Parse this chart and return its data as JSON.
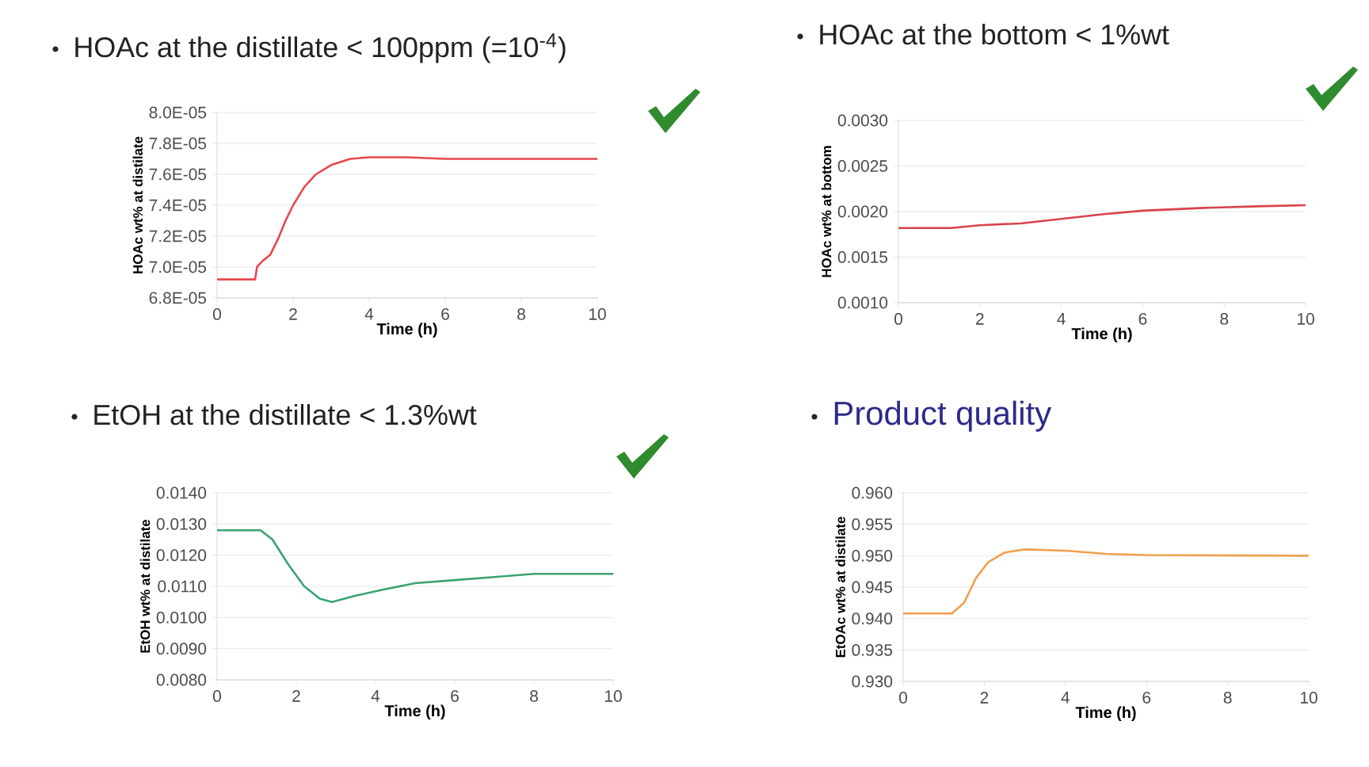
{
  "chart_data": [
    {
      "type": "line",
      "title": "HOAc at the distillate < 100ppm (=10$^{-4}$)",
      "xlabel": "Time (h)",
      "ylabel": "HOAc wt% at distilate",
      "color": "#e8474f",
      "grid": "y",
      "x": [
        0,
        1.0,
        1.05,
        1.2,
        1.4,
        1.6,
        1.8,
        2.0,
        2.3,
        2.6,
        3.0,
        3.5,
        4.0,
        5,
        6,
        8,
        10
      ],
      "values": [
        6.92e-05,
        6.92e-05,
        7e-05,
        7.04e-05,
        7.08e-05,
        7.18e-05,
        7.3e-05,
        7.4e-05,
        7.52e-05,
        7.6e-05,
        7.66e-05,
        7.7e-05,
        7.71e-05,
        7.71e-05,
        7.7e-05,
        7.7e-05,
        7.7e-05
      ],
      "xlim": [
        0,
        10
      ],
      "xticks": [
        0,
        2,
        4,
        6,
        8,
        10
      ],
      "ylim": [
        6.8e-05,
        8e-05
      ],
      "yticks": [
        {
          "value": 6.8e-05,
          "label": "6.8E-05"
        },
        {
          "value": 7e-05,
          "label": "7.0E-05"
        },
        {
          "value": 7.2e-05,
          "label": "7.2E-05"
        },
        {
          "value": 7.4e-05,
          "label": "7.4E-05"
        },
        {
          "value": 7.6e-05,
          "label": "7.6E-05"
        },
        {
          "value": 7.8e-05,
          "label": "7.8E-05"
        },
        {
          "value": 8e-05,
          "label": "8.0E-05"
        }
      ]
    },
    {
      "type": "line",
      "title": "HOAc at the bottom < 1%wt",
      "xlabel": "Time (h)",
      "ylabel": "HOAc wt% at bottom",
      "color": "#d9434a",
      "grid": "y",
      "x": [
        0,
        1.3,
        2,
        3,
        4,
        5,
        6,
        7.5,
        9,
        10
      ],
      "values": [
        0.00182,
        0.00182,
        0.00185,
        0.00187,
        0.00192,
        0.00197,
        0.00201,
        0.00204,
        0.00206,
        0.00207
      ],
      "xlim": [
        0,
        10
      ],
      "xticks": [
        0,
        2,
        4,
        6,
        8,
        10
      ],
      "ylim": [
        0.001,
        0.003
      ],
      "yticks": [
        {
          "value": 0.001,
          "label": "0.0010"
        },
        {
          "value": 0.0015,
          "label": "0.0015"
        },
        {
          "value": 0.002,
          "label": "0.0020"
        },
        {
          "value": 0.0025,
          "label": "0.0025"
        },
        {
          "value": 0.003,
          "label": "0.0030"
        }
      ]
    },
    {
      "type": "line",
      "title": "EtOH at the distillate < 1.3%wt",
      "xlabel": "Time (h)",
      "ylabel": "EtOH wt% at distilate",
      "color": "#3aa36f",
      "grid": "y",
      "x": [
        0,
        1.1,
        1.4,
        1.8,
        2.2,
        2.6,
        2.9,
        3.5,
        4.2,
        5,
        6,
        7,
        8,
        10
      ],
      "values": [
        0.0128,
        0.0128,
        0.0125,
        0.0117,
        0.011,
        0.0106,
        0.0105,
        0.0107,
        0.0109,
        0.0111,
        0.0112,
        0.0113,
        0.0114,
        0.0114
      ],
      "xlim": [
        0,
        10
      ],
      "xticks": [
        0,
        2,
        4,
        6,
        8,
        10
      ],
      "ylim": [
        0.008,
        0.014
      ],
      "yticks": [
        {
          "value": 0.008,
          "label": "0.0080"
        },
        {
          "value": 0.009,
          "label": "0.0090"
        },
        {
          "value": 0.01,
          "label": "0.0100"
        },
        {
          "value": 0.011,
          "label": "0.0110"
        },
        {
          "value": 0.012,
          "label": "0.0120"
        },
        {
          "value": 0.013,
          "label": "0.0130"
        },
        {
          "value": 0.014,
          "label": "0.0140"
        }
      ]
    },
    {
      "type": "line",
      "title": "Product quality",
      "xlabel": "Time (h)",
      "ylabel": "EtOAc wt% at distilate",
      "color": "#f0a050",
      "grid": "y",
      "x": [
        0,
        1.2,
        1.5,
        1.8,
        2.1,
        2.5,
        3,
        4,
        5,
        6,
        10
      ],
      "values": [
        0.9408,
        0.9408,
        0.9425,
        0.9465,
        0.949,
        0.9505,
        0.951,
        0.9508,
        0.9503,
        0.9501,
        0.95
      ],
      "xlim": [
        0,
        10
      ],
      "xticks": [
        0,
        2,
        4,
        6,
        8,
        10
      ],
      "ylim": [
        0.93,
        0.96
      ],
      "yticks": [
        {
          "value": 0.93,
          "label": "0.930"
        },
        {
          "value": 0.935,
          "label": "0.935"
        },
        {
          "value": 0.94,
          "label": "0.940"
        },
        {
          "value": 0.945,
          "label": "0.945"
        },
        {
          "value": 0.95,
          "label": "0.950"
        },
        {
          "value": 0.955,
          "label": "0.955"
        },
        {
          "value": 0.96,
          "label": "0.960"
        }
      ]
    }
  ]
}
